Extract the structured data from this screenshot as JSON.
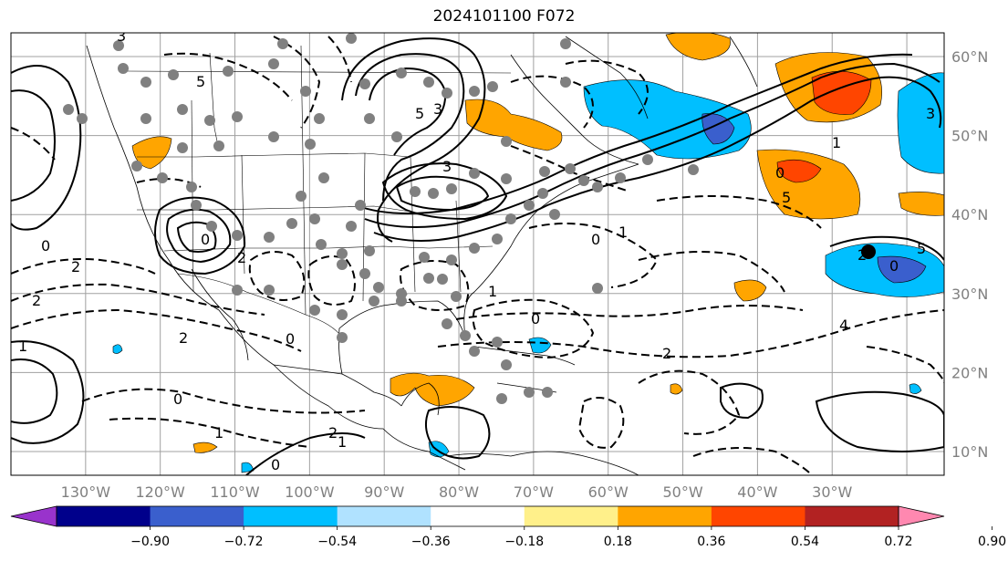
{
  "title": "2024101100 F072",
  "map": {
    "lon_range": [
      -140,
      -15
    ],
    "lat_range": [
      7,
      63
    ],
    "lon_labels": [
      "130°W",
      "120°W",
      "110°W",
      "100°W",
      "90°W",
      "80°W",
      "70°W",
      "60°W",
      "50°W",
      "40°W",
      "30°W"
    ],
    "lat_labels": [
      "10°N",
      "20°N",
      "30°N",
      "40°N",
      "50°N",
      "60°N"
    ],
    "contour_labels": [
      "3",
      "5",
      "3",
      "5",
      "3",
      "2",
      "2",
      "2",
      "1",
      "0",
      "2",
      "0",
      "0",
      "1",
      "0",
      "0",
      "2",
      "1",
      "1",
      "0",
      "1",
      "0",
      "2",
      "4",
      "0",
      "5",
      "1",
      "2",
      "0",
      "5",
      "3"
    ]
  },
  "colorbar": {
    "ticks": [
      "−0.90",
      "−0.72",
      "−0.54",
      "−0.36",
      "−0.18",
      "0.18",
      "0.36",
      "0.54",
      "0.72",
      "0.90"
    ],
    "colors": [
      "#9933cc",
      "#00008b",
      "#3a5fcd",
      "#00bfff",
      "#b0e2ff",
      "#ffffff",
      "#fff08a",
      "#ffa500",
      "#ff4500",
      "#b22222",
      "#ff88b0"
    ]
  }
}
